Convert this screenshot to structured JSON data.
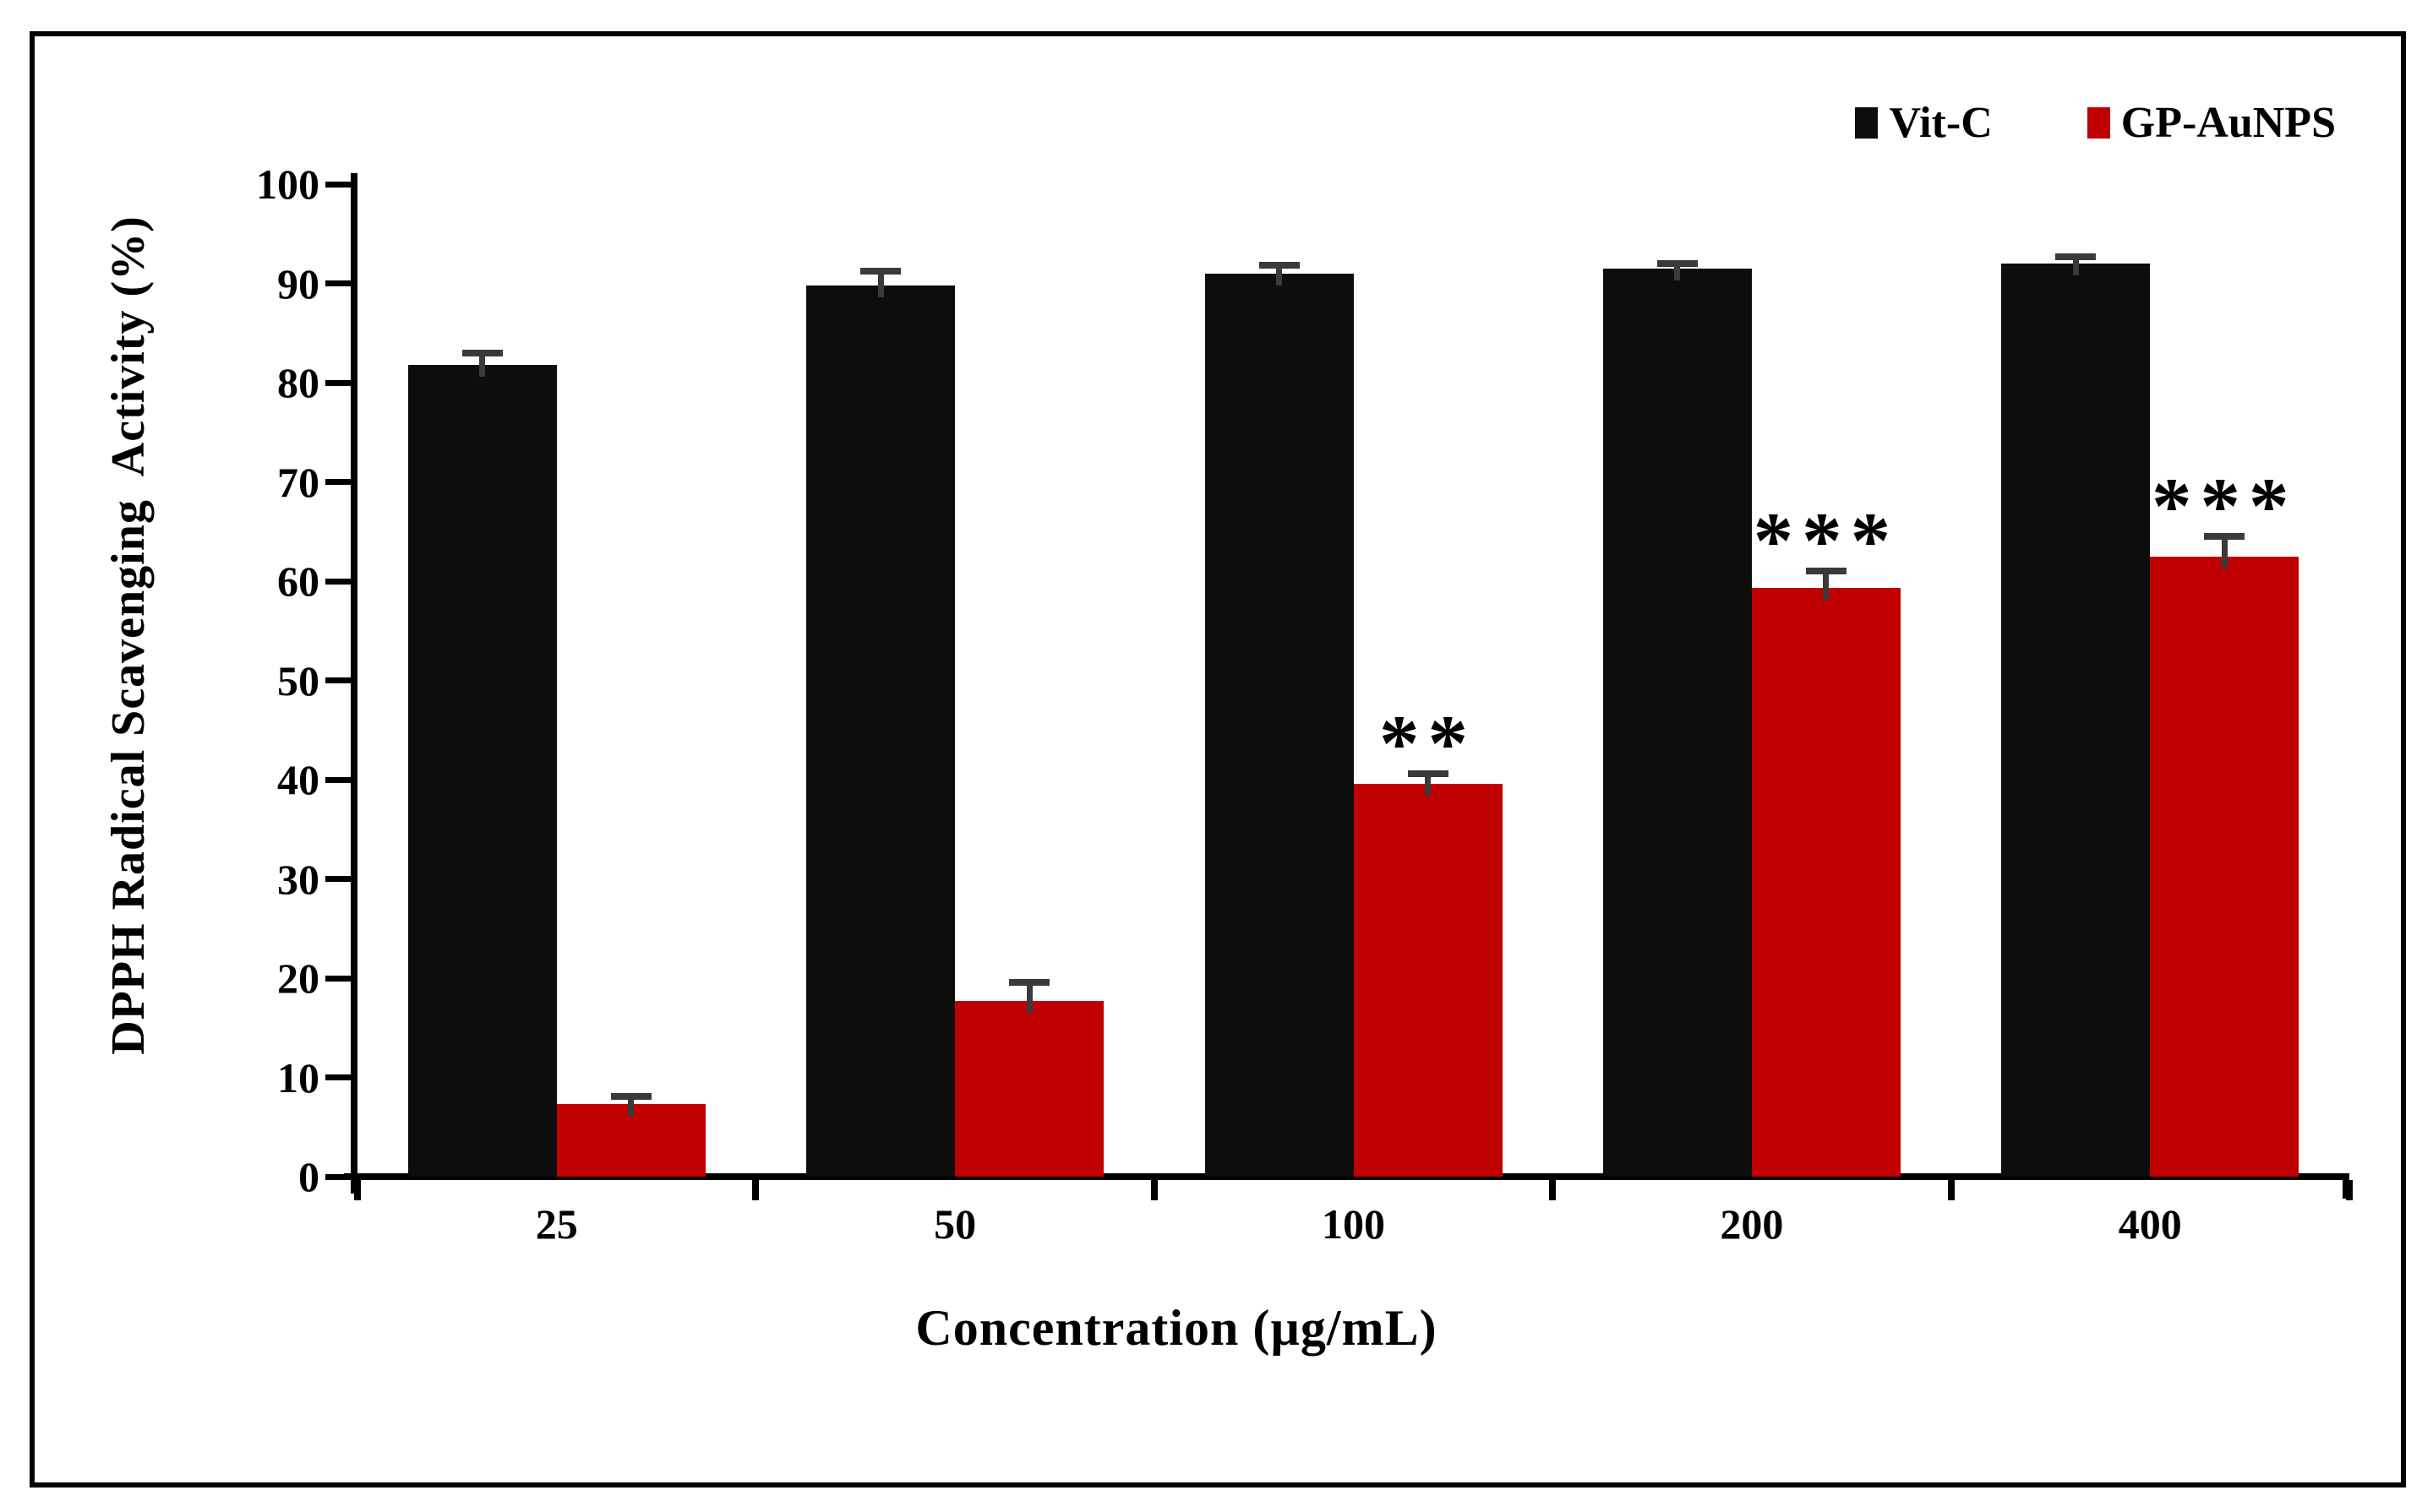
{
  "figure": {
    "background": "#ffffff",
    "border_color": "#000000"
  },
  "chart_data": {
    "type": "bar",
    "title": "",
    "xlabel": "Concentration (µg/mL)",
    "ylabel": "DPPH Radical Scavenging  Activity (%)",
    "categories": [
      "25",
      "50",
      "100",
      "200",
      "400"
    ],
    "series": [
      {
        "name": "Vit-C",
        "color": "#0d0d0d",
        "values": [
          81.8,
          89.8,
          91.0,
          91.5,
          92.0
        ],
        "errors": [
          1.3,
          1.5,
          0.9,
          0.6,
          0.8
        ]
      },
      {
        "name": "GP-AuNPS",
        "color": "#c00000",
        "values": [
          7.3,
          17.7,
          39.6,
          59.3,
          62.5
        ],
        "errors": [
          0.9,
          2.0,
          1.1,
          1.8,
          2.1
        ]
      }
    ],
    "significance": [
      "",
      "",
      "**",
      "***",
      "***"
    ],
    "ylim": [
      0,
      100
    ],
    "yticks": [
      0,
      10,
      20,
      30,
      40,
      50,
      60,
      70,
      80,
      90,
      100
    ],
    "grid": "off",
    "legend_position": "top-right",
    "axis_color": "#000000",
    "error_bar_color": "#3a3a3a"
  }
}
